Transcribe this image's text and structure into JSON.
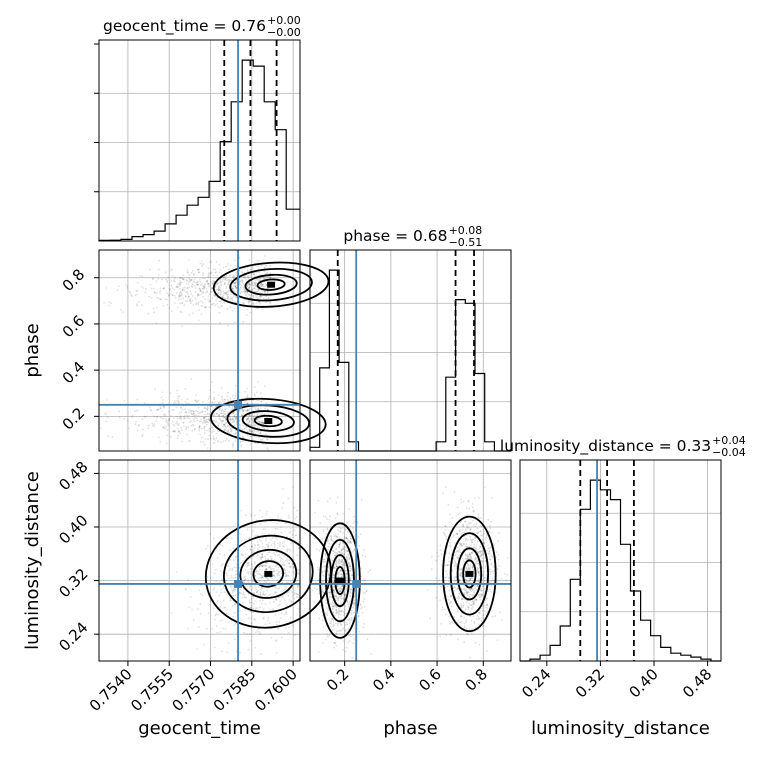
{
  "chart_data": {
    "type": "corner",
    "truth_color": "#4682b4",
    "parameters": [
      {
        "name": "geocent_time",
        "xlabel": "geocent_time",
        "title": "geocent_time = 0.76",
        "median": "0.76",
        "upper": "+0.00",
        "lower": "−0.00",
        "range": [
          0.75295,
          0.76025
        ],
        "ticks": [
          0.754,
          0.7555,
          0.757,
          0.7585,
          0.76
        ],
        "tick_labels": [
          "0.7540",
          "0.7555",
          "0.7570",
          "0.7585",
          "0.7600"
        ],
        "truth": 0.758,
        "quantiles": [
          0.7575,
          0.75845,
          0.7594
        ],
        "hist_edges": [
          0.75295,
          0.75335,
          0.75375,
          0.75415,
          0.75455,
          0.75495,
          0.75535,
          0.75575,
          0.75615,
          0.75655,
          0.75695,
          0.75735,
          0.75775,
          0.75815,
          0.75855,
          0.75895,
          0.75935,
          0.75975,
          0.76025
        ],
        "hist_values": [
          0.003,
          0.004,
          0.008,
          0.022,
          0.032,
          0.05,
          0.086,
          0.13,
          0.18,
          0.22,
          0.3,
          0.5,
          0.7,
          0.91,
          0.88,
          0.7,
          0.56,
          0.16
        ]
      },
      {
        "name": "phase",
        "xlabel": "phase",
        "ylabel": "phase",
        "title": "phase = 0.68",
        "median": "0.68",
        "upper": "+0.08",
        "lower": "−0.51",
        "range": [
          0.05,
          0.92
        ],
        "ticks": [
          0.2,
          0.4,
          0.6,
          0.8
        ],
        "tick_labels": [
          "0.2",
          "0.4",
          "0.6",
          "0.8"
        ],
        "truth": 0.25,
        "quantiles": [
          0.17,
          0.68,
          0.76
        ],
        "hist_edges": [
          0.05,
          0.092,
          0.134,
          0.176,
          0.218,
          0.26,
          0.302,
          0.344,
          0.386,
          0.428,
          0.47,
          0.512,
          0.554,
          0.596,
          0.638,
          0.68,
          0.722,
          0.764,
          0.806,
          0.848,
          0.92
        ],
        "hist_values": [
          0.02,
          0.45,
          0.98,
          0.48,
          0.05,
          0.0,
          0.0,
          0.0,
          0.0,
          0.0,
          0.0,
          0.0,
          0.0,
          0.05,
          0.4,
          0.82,
          0.8,
          0.42,
          0.05,
          0.0
        ]
      },
      {
        "name": "luminosity_distance",
        "xlabel": "luminosity_distance",
        "ylabel": "luminosity_distance",
        "title": "luminosity_distance = 0.33",
        "median": "0.33",
        "upper": "+0.04",
        "lower": "−0.04",
        "range": [
          0.2,
          0.5
        ],
        "ticks": [
          0.24,
          0.32,
          0.4,
          0.48
        ],
        "tick_labels": [
          "0.24",
          "0.32",
          "0.40",
          "0.48"
        ],
        "truth": 0.315,
        "quantiles": [
          0.29,
          0.33,
          0.37
        ],
        "hist_edges": [
          0.2,
          0.215,
          0.23,
          0.245,
          0.26,
          0.275,
          0.29,
          0.305,
          0.32,
          0.335,
          0.35,
          0.365,
          0.38,
          0.395,
          0.41,
          0.425,
          0.44,
          0.455,
          0.47,
          0.485,
          0.5
        ],
        "hist_values": [
          0.0,
          0.01,
          0.03,
          0.08,
          0.18,
          0.42,
          0.78,
          0.93,
          0.88,
          0.83,
          0.6,
          0.36,
          0.21,
          0.13,
          0.07,
          0.04,
          0.03,
          0.02,
          0.01,
          0.0
        ]
      }
    ],
    "joint_modes": [
      {
        "x": "geocent_time",
        "y": "phase",
        "modes": [
          {
            "center": [
              0.7592,
              0.77
            ],
            "spread": [
              0.0011,
              0.05
            ],
            "rot": 0.13,
            "weight": 1
          },
          {
            "center": [
              0.7591,
              0.18
            ],
            "spread": [
              0.0011,
              0.05
            ],
            "rot": -0.13,
            "weight": 1
          }
        ]
      },
      {
        "x": "geocent_time",
        "y": "luminosity_distance",
        "modes": [
          {
            "center": [
              0.7591,
              0.33
            ],
            "spread": [
              0.0012,
              0.042
            ],
            "rot": 0.35,
            "weight": 1
          }
        ]
      },
      {
        "x": "phase",
        "y": "luminosity_distance",
        "modes": [
          {
            "center": [
              0.18,
              0.32
            ],
            "spread": [
              0.045,
              0.045
            ],
            "rot": 0,
            "weight": 1
          },
          {
            "center": [
              0.74,
              0.33
            ],
            "spread": [
              0.06,
              0.045
            ],
            "rot": 0,
            "weight": 1
          }
        ]
      }
    ]
  }
}
